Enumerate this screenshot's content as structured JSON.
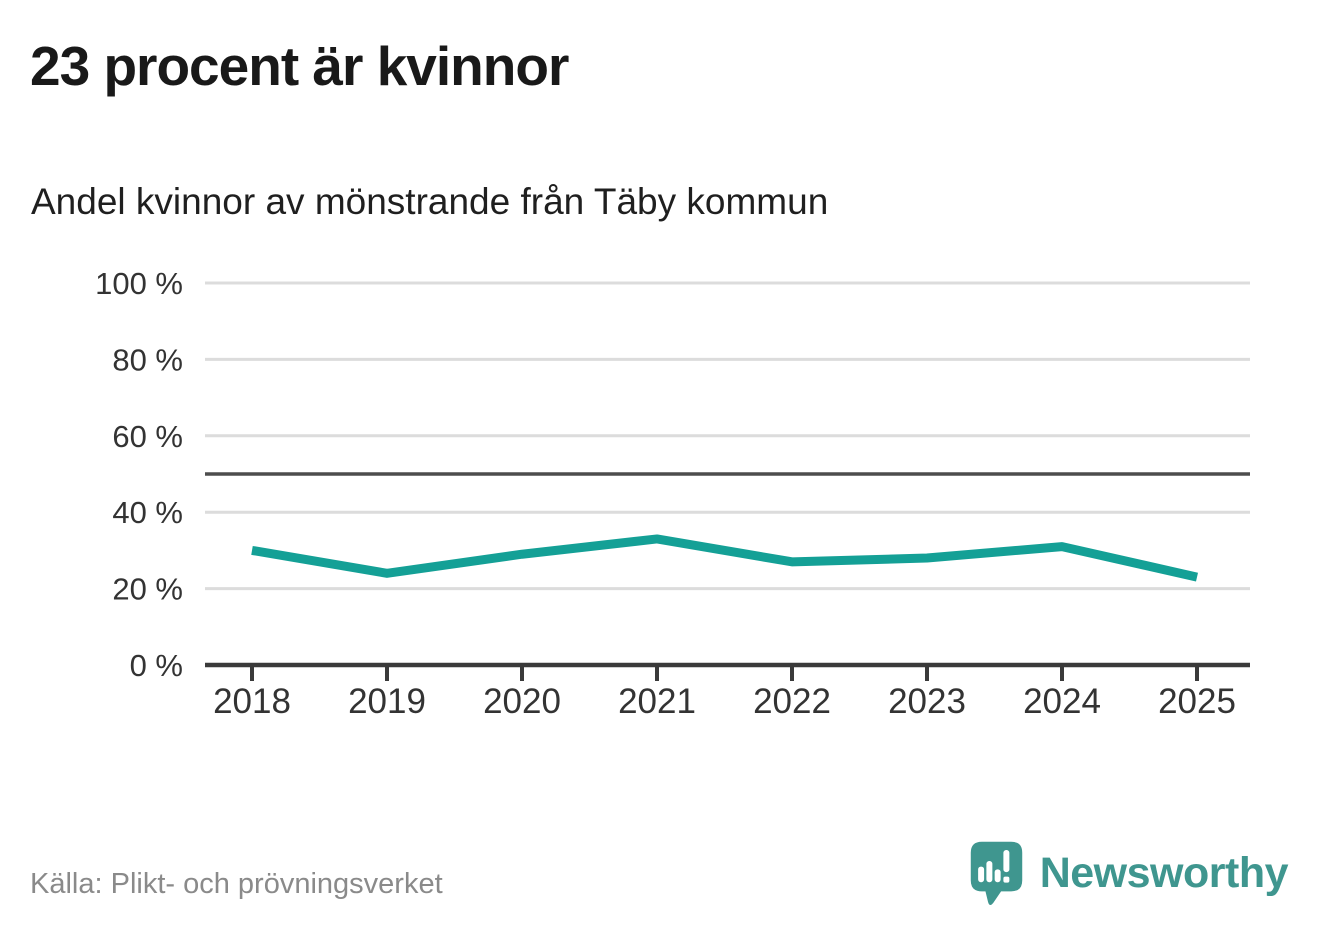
{
  "header": {
    "title": "23 procent är kvinnor",
    "subtitle": "Andel kvinnor av mönstrande från Täby kommun"
  },
  "chart_data": {
    "type": "line",
    "title": "23 procent är kvinnor",
    "subtitle": "Andel kvinnor av mönstrande från Täby kommun",
    "x": [
      2018,
      2019,
      2020,
      2021,
      2022,
      2023,
      2024,
      2025
    ],
    "series": [
      {
        "name": "Andel kvinnor av mönstrande",
        "values": [
          30,
          24,
          29,
          33,
          27,
          28,
          31,
          23
        ]
      }
    ],
    "xlabel": "",
    "ylabel": "",
    "ylim": [
      0,
      100
    ],
    "y_ticks": [
      0,
      20,
      40,
      60,
      80,
      100
    ],
    "y_tick_suffix": " %",
    "reference_line": 50,
    "grid": true,
    "legend_position": "none",
    "colors": {
      "line": "#14a096",
      "grid": "#dcdcdc",
      "reference": "#4d4d4d",
      "axis": "#3a3a3a",
      "tick_text": "#333333"
    }
  },
  "footer": {
    "source": "Källa: Plikt- och prövningsverket",
    "brand": "Newsworthy",
    "brand_color": "#3f968f"
  }
}
